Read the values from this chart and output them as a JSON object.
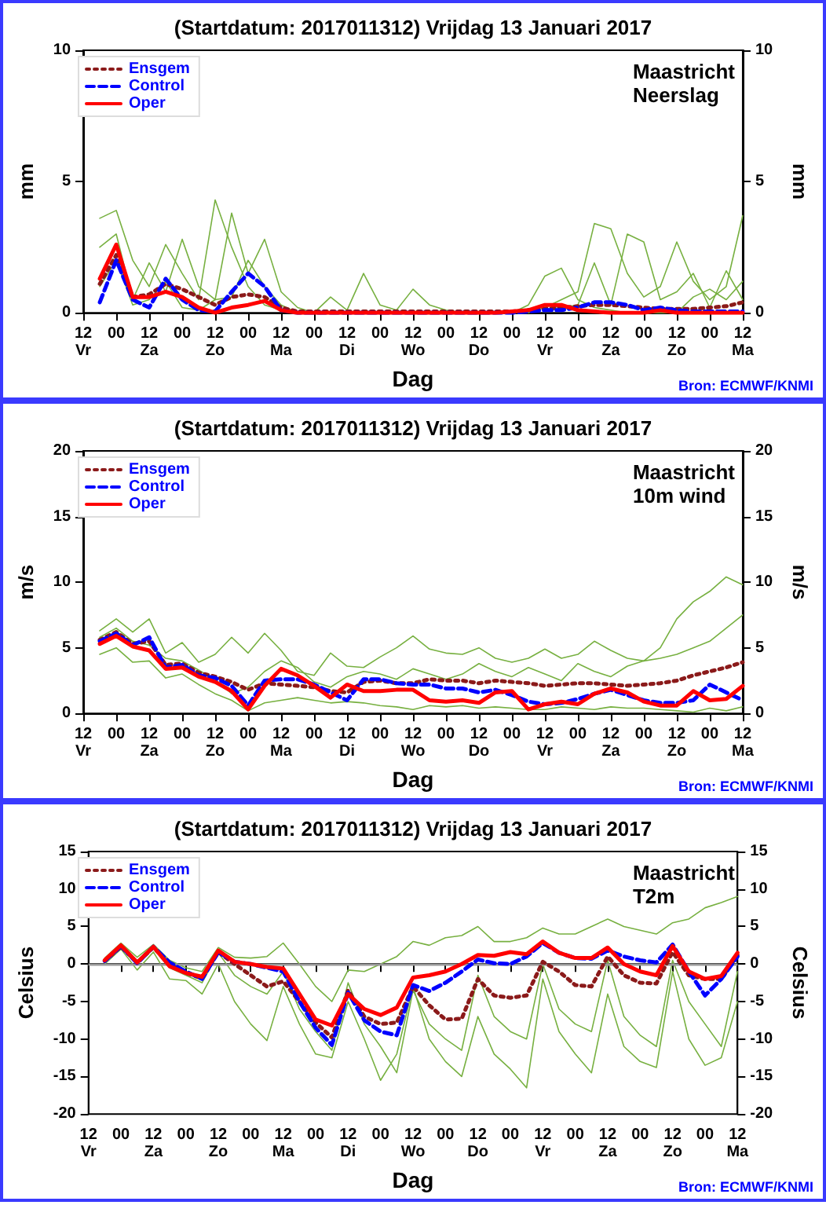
{
  "chart_data": [
    {
      "type": "line",
      "title": "(Startdatum: 2017011312) Vrijdag 13 Januari 2017",
      "subtitle": "Maastricht\nNeerslag",
      "xlabel": "Dag",
      "ylabel": "mm",
      "y2label": "mm",
      "annotations": [
        "Bron: ECMWF/KNMI"
      ],
      "legend": "top left",
      "grid": false,
      "marker": "none",
      "xlim": [
        "2017-01-13T12:00",
        "2017-01-23T12:00"
      ],
      "xticks": [
        {
          "value": "2017-01-13T12:00",
          "label": "12\nVr"
        },
        {
          "value": "2017-01-14T00:00",
          "label": "00"
        },
        {
          "value": "2017-01-14T12:00",
          "label": "12\nZa"
        },
        {
          "value": "2017-01-15T00:00",
          "label": "00"
        },
        {
          "value": "2017-01-15T12:00",
          "label": "12\nZo"
        },
        {
          "value": "2017-01-16T00:00",
          "label": "00"
        },
        {
          "value": "2017-01-16T12:00",
          "label": "12\nMa"
        },
        {
          "value": "2017-01-17T00:00",
          "label": "00"
        },
        {
          "value": "2017-01-17T12:00",
          "label": "12\nDi"
        },
        {
          "value": "2017-01-18T00:00",
          "label": "00"
        },
        {
          "value": "2017-01-18T12:00",
          "label": "12\nWo"
        },
        {
          "value": "2017-01-19T00:00",
          "label": "00"
        },
        {
          "value": "2017-01-19T12:00",
          "label": "12\nDo"
        },
        {
          "value": "2017-01-20T00:00",
          "label": "00"
        },
        {
          "value": "2017-01-20T12:00",
          "label": "12\nVr"
        },
        {
          "value": "2017-01-21T00:00",
          "label": "00"
        },
        {
          "value": "2017-01-21T12:00",
          "label": "12\nZa"
        },
        {
          "value": "2017-01-22T00:00",
          "label": "00"
        },
        {
          "value": "2017-01-22T12:00",
          "label": "12\nZo"
        },
        {
          "value": "2017-01-23T00:00",
          "label": "00"
        },
        {
          "value": "2017-01-23T12:00",
          "label": "12\nMa"
        }
      ],
      "ylim": [
        0,
        10
      ],
      "yticks": [
        0,
        5,
        10
      ],
      "y2lim": [
        0,
        10
      ],
      "y2ticks": [
        0,
        5,
        10
      ],
      "x": [
        "2017-01-13T18:00",
        "2017-01-14T00:00",
        "2017-01-14T06:00",
        "2017-01-14T12:00",
        "2017-01-14T18:00",
        "2017-01-15T00:00",
        "2017-01-15T06:00",
        "2017-01-15T12:00",
        "2017-01-15T18:00",
        "2017-01-16T00:00",
        "2017-01-16T06:00",
        "2017-01-16T12:00",
        "2017-01-16T18:00",
        "2017-01-17T00:00",
        "2017-01-17T06:00",
        "2017-01-17T12:00",
        "2017-01-17T18:00",
        "2017-01-18T00:00",
        "2017-01-18T06:00",
        "2017-01-18T12:00",
        "2017-01-18T18:00",
        "2017-01-19T00:00",
        "2017-01-19T06:00",
        "2017-01-19T12:00",
        "2017-01-19T18:00",
        "2017-01-20T00:00",
        "2017-01-20T06:00",
        "2017-01-20T12:00",
        "2017-01-20T18:00",
        "2017-01-21T00:00",
        "2017-01-21T06:00",
        "2017-01-21T12:00",
        "2017-01-21T18:00",
        "2017-01-22T00:00",
        "2017-01-22T06:00",
        "2017-01-22T12:00",
        "2017-01-22T18:00",
        "2017-01-23T00:00",
        "2017-01-23T06:00",
        "2017-01-23T12:00"
      ],
      "series": [
        {
          "color": "#77b040",
          "line_style": "solid",
          "values": [
            3.6,
            3.9,
            2.0,
            1.0,
            2.6,
            1.5,
            0.5,
            4.3,
            2.5,
            1.0,
            0.3,
            0.1,
            0,
            0,
            0,
            0,
            0,
            0,
            0,
            0,
            0,
            0,
            0,
            0,
            0,
            0,
            0.3,
            1.4,
            1.7,
            0.5,
            0.2,
            0.1,
            0,
            0,
            0,
            0,
            0.6,
            0.9,
            0.5,
            1.2
          ]
        },
        {
          "color": "#77b040",
          "line_style": "solid",
          "values": [
            2.5,
            3.0,
            0.5,
            1.9,
            0.8,
            2.8,
            1.0,
            0.5,
            3.8,
            1.5,
            2.8,
            0.8,
            0.2,
            0,
            0.6,
            0.1,
            1.5,
            0.3,
            0.1,
            0.9,
            0.3,
            0.1,
            0,
            0,
            0,
            0,
            0,
            0.2,
            0.5,
            0.8,
            3.4,
            3.2,
            1.5,
            0.6,
            1.0,
            2.7,
            1.2,
            0.5,
            1.0,
            3.7
          ]
        },
        {
          "color": "#77b040",
          "line_style": "solid",
          "values": [
            1.0,
            2.0,
            0.3,
            0.5,
            1.2,
            0.2,
            0.1,
            0.5,
            0.6,
            2.0,
            1.0,
            0.3,
            0,
            0,
            0,
            0,
            0,
            0,
            0,
            0,
            0,
            0,
            0,
            0,
            0,
            0,
            0.1,
            0.3,
            0.2,
            0.3,
            1.9,
            0.3,
            3.0,
            2.7,
            0.5,
            0.8,
            1.5,
            0.2,
            1.6,
            0.5
          ]
        },
        {
          "name": "Ensgem",
          "color": "#8b1a1a",
          "line_style": "dotted",
          "values": [
            1.1,
            2.2,
            0.6,
            0.7,
            1.1,
            0.9,
            0.6,
            0.3,
            0.6,
            0.7,
            0.6,
            0.2,
            0.05,
            0.05,
            0.05,
            0.05,
            0.05,
            0.05,
            0.05,
            0.05,
            0.05,
            0.05,
            0.05,
            0.05,
            0.05,
            0.05,
            0.1,
            0.15,
            0.2,
            0.25,
            0.3,
            0.3,
            0.25,
            0.2,
            0.15,
            0.15,
            0.15,
            0.2,
            0.25,
            0.4
          ]
        },
        {
          "name": "Control",
          "color": "#0000ff",
          "line_style": "dashed",
          "values": [
            0.4,
            2.0,
            0.5,
            0.2,
            1.3,
            0.5,
            0.1,
            0.05,
            0.8,
            1.5,
            1.0,
            0.1,
            0,
            0,
            0,
            0,
            0,
            0,
            0,
            0,
            0,
            0,
            0,
            0,
            0,
            0,
            0.05,
            0.1,
            0.1,
            0.2,
            0.4,
            0.4,
            0.3,
            0.1,
            0.2,
            0.1,
            0.05,
            0.05,
            0.05,
            0.05
          ]
        },
        {
          "name": "Oper",
          "color": "#ff0000",
          "line_style": "solid",
          "values": [
            1.3,
            2.6,
            0.6,
            0.6,
            0.8,
            0.6,
            0.2,
            0,
            0.2,
            0.3,
            0.45,
            0.1,
            0,
            0,
            0,
            0,
            0,
            0,
            0,
            0,
            0,
            0,
            0,
            0,
            0,
            0.05,
            0.1,
            0.3,
            0.3,
            0.1,
            0.05,
            0,
            0,
            0,
            0.1,
            0,
            0,
            0,
            0,
            0
          ]
        }
      ]
    },
    {
      "type": "line",
      "title": "(Startdatum: 2017011312) Vrijdag 13 Januari 2017",
      "subtitle": "Maastricht\n10m wind",
      "xlabel": "Dag",
      "ylabel": "m/s",
      "y2label": "m/s",
      "annotations": [
        "Bron: ECMWF/KNMI"
      ],
      "legend": "top left",
      "grid": false,
      "marker": "none",
      "xlim": [
        "2017-01-13T12:00",
        "2017-01-23T12:00"
      ],
      "xticks": [
        {
          "value": "2017-01-13T12:00",
          "label": "12\nVr"
        },
        {
          "value": "2017-01-14T00:00",
          "label": "00"
        },
        {
          "value": "2017-01-14T12:00",
          "label": "12\nZa"
        },
        {
          "value": "2017-01-15T00:00",
          "label": "00"
        },
        {
          "value": "2017-01-15T12:00",
          "label": "12\nZo"
        },
        {
          "value": "2017-01-16T00:00",
          "label": "00"
        },
        {
          "value": "2017-01-16T12:00",
          "label": "12\nMa"
        },
        {
          "value": "2017-01-17T00:00",
          "label": "00"
        },
        {
          "value": "2017-01-17T12:00",
          "label": "12\nDi"
        },
        {
          "value": "2017-01-18T00:00",
          "label": "00"
        },
        {
          "value": "2017-01-18T12:00",
          "label": "12\nWo"
        },
        {
          "value": "2017-01-19T00:00",
          "label": "00"
        },
        {
          "value": "2017-01-19T12:00",
          "label": "12\nDo"
        },
        {
          "value": "2017-01-20T00:00",
          "label": "00"
        },
        {
          "value": "2017-01-20T12:00",
          "label": "12\nVr"
        },
        {
          "value": "2017-01-21T00:00",
          "label": "00"
        },
        {
          "value": "2017-01-21T12:00",
          "label": "12\nZa"
        },
        {
          "value": "2017-01-22T00:00",
          "label": "00"
        },
        {
          "value": "2017-01-22T12:00",
          "label": "12\nZo"
        },
        {
          "value": "2017-01-23T00:00",
          "label": "00"
        },
        {
          "value": "2017-01-23T12:00",
          "label": "12\nMa"
        }
      ],
      "ylim": [
        0,
        20
      ],
      "yticks": [
        0,
        5,
        10,
        15,
        20
      ],
      "y2lim": [
        0,
        20
      ],
      "y2ticks": [
        0,
        5,
        10,
        15,
        20
      ],
      "x": [
        "2017-01-13T18:00",
        "2017-01-14T00:00",
        "2017-01-14T06:00",
        "2017-01-14T12:00",
        "2017-01-14T18:00",
        "2017-01-15T00:00",
        "2017-01-15T06:00",
        "2017-01-15T12:00",
        "2017-01-15T18:00",
        "2017-01-16T00:00",
        "2017-01-16T06:00",
        "2017-01-16T12:00",
        "2017-01-16T18:00",
        "2017-01-17T00:00",
        "2017-01-17T06:00",
        "2017-01-17T12:00",
        "2017-01-17T18:00",
        "2017-01-18T00:00",
        "2017-01-18T06:00",
        "2017-01-18T12:00",
        "2017-01-18T18:00",
        "2017-01-19T00:00",
        "2017-01-19T06:00",
        "2017-01-19T12:00",
        "2017-01-19T18:00",
        "2017-01-20T00:00",
        "2017-01-20T06:00",
        "2017-01-20T12:00",
        "2017-01-20T18:00",
        "2017-01-21T00:00",
        "2017-01-21T06:00",
        "2017-01-21T12:00",
        "2017-01-21T18:00",
        "2017-01-22T00:00",
        "2017-01-22T06:00",
        "2017-01-22T12:00",
        "2017-01-22T18:00",
        "2017-01-23T00:00",
        "2017-01-23T06:00",
        "2017-01-23T12:00"
      ],
      "series": [
        {
          "color": "#77b040",
          "line_style": "solid",
          "values": [
            6.3,
            7.2,
            6.2,
            7.2,
            4.6,
            5.4,
            3.9,
            4.5,
            5.8,
            4.6,
            6.1,
            4.8,
            3.2,
            2.9,
            4.6,
            3.6,
            3.5,
            4.3,
            5.0,
            5.9,
            4.9,
            4.6,
            4.5,
            5.0,
            4.2,
            3.9,
            4.2,
            4.9,
            4.2,
            4.5,
            5.5,
            4.8,
            4.2,
            4.0,
            5.0,
            7.2,
            8.5,
            9.3,
            10.4,
            9.8
          ]
        },
        {
          "color": "#77b040",
          "line_style": "solid",
          "values": [
            4.5,
            5.0,
            3.9,
            4.0,
            2.7,
            3.0,
            2.2,
            1.5,
            1.0,
            0.2,
            0.8,
            1.0,
            1.2,
            1.0,
            0.8,
            0.9,
            0.8,
            0.6,
            0.5,
            0.3,
            0.6,
            0.5,
            0.6,
            0.4,
            0.5,
            0.4,
            0.3,
            0.3,
            0.5,
            0.4,
            0.3,
            0.5,
            0.4,
            0.4,
            0.3,
            0.2,
            0.1,
            0.4,
            0.2,
            0.5
          ]
        },
        {
          "color": "#77b040",
          "line_style": "solid",
          "values": [
            5.8,
            6.5,
            5.5,
            5.2,
            4.2,
            4.0,
            3.3,
            2.6,
            1.5,
            2.0,
            3.2,
            4.0,
            3.5,
            2.4,
            2.0,
            2.8,
            3.2,
            3.0,
            2.6,
            3.4,
            3.0,
            2.6,
            3.0,
            3.8,
            3.2,
            2.8,
            3.5,
            3.0,
            2.5,
            3.8,
            3.2,
            2.8,
            3.6,
            4.0,
            4.2,
            4.5,
            5.0,
            5.5,
            6.5,
            7.5
          ]
        },
        {
          "name": "Ensgem",
          "color": "#8b1a1a",
          "line_style": "dotted",
          "values": [
            5.6,
            6.2,
            5.3,
            5.5,
            3.7,
            3.8,
            3.1,
            2.8,
            2.4,
            1.8,
            2.3,
            2.2,
            2.1,
            2.0,
            1.7,
            1.6,
            2.4,
            2.5,
            2.3,
            2.3,
            2.6,
            2.5,
            2.5,
            2.3,
            2.5,
            2.4,
            2.3,
            2.1,
            2.2,
            2.3,
            2.3,
            2.2,
            2.1,
            2.2,
            2.3,
            2.5,
            2.9,
            3.2,
            3.5,
            3.9
          ]
        },
        {
          "name": "Control",
          "color": "#0000ff",
          "line_style": "dashed",
          "values": [
            5.5,
            6.1,
            5.2,
            5.8,
            3.5,
            3.7,
            2.9,
            2.7,
            2.1,
            0.6,
            2.5,
            2.6,
            2.6,
            2.2,
            1.6,
            1.0,
            2.6,
            2.6,
            2.3,
            2.2,
            2.2,
            1.9,
            1.9,
            1.6,
            1.8,
            1.4,
            0.9,
            0.7,
            0.8,
            1.1,
            1.5,
            1.8,
            1.4,
            1.0,
            0.8,
            0.8,
            1.0,
            2.2,
            1.6,
            1.0
          ]
        },
        {
          "name": "Oper",
          "color": "#ff0000",
          "line_style": "solid",
          "values": [
            5.3,
            5.9,
            5.1,
            4.8,
            3.4,
            3.5,
            2.8,
            2.4,
            1.7,
            0.3,
            2.1,
            3.4,
            2.9,
            2.1,
            1.2,
            2.2,
            1.7,
            1.7,
            1.8,
            1.8,
            1.0,
            0.9,
            1.0,
            0.8,
            1.6,
            1.7,
            0.3,
            0.7,
            0.9,
            0.7,
            1.5,
            1.9,
            1.6,
            0.9,
            0.6,
            0.6,
            1.7,
            1.0,
            1.1,
            2.1
          ]
        }
      ]
    },
    {
      "type": "line",
      "title": "(Startdatum: 2017011312) Vrijdag 13 Januari 2017",
      "subtitle": "Maastricht\nT2m",
      "xlabel": "Dag",
      "ylabel": "Celsius",
      "y2label": "Celsius",
      "annotations": [
        "Bron: ECMWF/KNMI"
      ],
      "legend": "top left",
      "grid": false,
      "marker": "none",
      "xlim": [
        "2017-01-13T12:00",
        "2017-01-23T12:00"
      ],
      "xticks": [
        {
          "value": "2017-01-13T12:00",
          "label": "12\nVr"
        },
        {
          "value": "2017-01-14T00:00",
          "label": "00"
        },
        {
          "value": "2017-01-14T12:00",
          "label": "12\nZa"
        },
        {
          "value": "2017-01-15T00:00",
          "label": "00"
        },
        {
          "value": "2017-01-15T12:00",
          "label": "12\nZo"
        },
        {
          "value": "2017-01-16T00:00",
          "label": "00"
        },
        {
          "value": "2017-01-16T12:00",
          "label": "12\nMa"
        },
        {
          "value": "2017-01-17T00:00",
          "label": "00"
        },
        {
          "value": "2017-01-17T12:00",
          "label": "12\nDi"
        },
        {
          "value": "2017-01-18T00:00",
          "label": "00"
        },
        {
          "value": "2017-01-18T12:00",
          "label": "12\nWo"
        },
        {
          "value": "2017-01-19T00:00",
          "label": "00"
        },
        {
          "value": "2017-01-19T12:00",
          "label": "12\nDo"
        },
        {
          "value": "2017-01-20T00:00",
          "label": "00"
        },
        {
          "value": "2017-01-20T12:00",
          "label": "12\nVr"
        },
        {
          "value": "2017-01-21T00:00",
          "label": "00"
        },
        {
          "value": "2017-01-21T12:00",
          "label": "12\nZa"
        },
        {
          "value": "2017-01-22T00:00",
          "label": "00"
        },
        {
          "value": "2017-01-22T12:00",
          "label": "12\nZo"
        },
        {
          "value": "2017-01-23T00:00",
          "label": "00"
        },
        {
          "value": "2017-01-23T12:00",
          "label": "12\nMa"
        }
      ],
      "ylim": [
        -20,
        15
      ],
      "yticks": [
        -20,
        -15,
        -10,
        -5,
        0,
        5,
        10,
        15
      ],
      "y2lim": [
        -20,
        15
      ],
      "y2ticks": [
        -20,
        -15,
        -10,
        -5,
        0,
        5,
        10,
        15
      ],
      "ref_lines": [
        {
          "axis": "y",
          "value": 0,
          "color": "#999999"
        }
      ],
      "x": [
        "2017-01-13T18:00",
        "2017-01-14T00:00",
        "2017-01-14T06:00",
        "2017-01-14T12:00",
        "2017-01-14T18:00",
        "2017-01-15T00:00",
        "2017-01-15T06:00",
        "2017-01-15T12:00",
        "2017-01-15T18:00",
        "2017-01-16T00:00",
        "2017-01-16T06:00",
        "2017-01-16T12:00",
        "2017-01-16T18:00",
        "2017-01-17T00:00",
        "2017-01-17T06:00",
        "2017-01-17T12:00",
        "2017-01-17T18:00",
        "2017-01-18T00:00",
        "2017-01-18T06:00",
        "2017-01-18T12:00",
        "2017-01-18T18:00",
        "2017-01-19T00:00",
        "2017-01-19T06:00",
        "2017-01-19T12:00",
        "2017-01-19T18:00",
        "2017-01-20T00:00",
        "2017-01-20T06:00",
        "2017-01-20T12:00",
        "2017-01-20T18:00",
        "2017-01-21T00:00",
        "2017-01-21T06:00",
        "2017-01-21T12:00",
        "2017-01-21T18:00",
        "2017-01-22T00:00",
        "2017-01-22T06:00",
        "2017-01-22T12:00",
        "2017-01-22T18:00",
        "2017-01-23T00:00",
        "2017-01-23T06:00",
        "2017-01-23T12:00"
      ],
      "series": [
        {
          "color": "#77b040",
          "line_style": "solid",
          "values": [
            0.8,
            2.8,
            0.9,
            2.6,
            0.5,
            -0.5,
            -1.0,
            2.2,
            0.9,
            0.8,
            1.0,
            2.8,
            0,
            -3.0,
            -5.0,
            -0.8,
            -1.0,
            0,
            1.0,
            3.0,
            2.5,
            3.5,
            3.8,
            5.0,
            3.0,
            3.0,
            3.5,
            4.8,
            4.0,
            4.0,
            5.0,
            6.0,
            5.0,
            4.5,
            4.0,
            5.5,
            6.0,
            7.5,
            8.2,
            9.0
          ]
        },
        {
          "color": "#77b040",
          "line_style": "solid",
          "values": [
            0,
            2.0,
            -0.8,
            1.6,
            -2.0,
            -2.2,
            -4.0,
            0,
            -5.0,
            -8.0,
            -10.2,
            -3.0,
            -8.0,
            -12.0,
            -12.5,
            -5.0,
            -10.0,
            -15.5,
            -12.0,
            -3.0,
            -10.0,
            -13.0,
            -15.0,
            -7.0,
            -12.0,
            -14.0,
            -16.5,
            -2.0,
            -9.0,
            -12.0,
            -14.5,
            -4.0,
            -11.0,
            -13.0,
            -13.8,
            -1.0,
            -10.0,
            -13.5,
            -12.5,
            -5.0
          ]
        },
        {
          "color": "#77b040",
          "line_style": "solid",
          "values": [
            0.5,
            2.4,
            0.3,
            2.4,
            -0.5,
            -1.5,
            -2.5,
            1.5,
            -1.5,
            -3.0,
            -4.0,
            -1.0,
            -6.0,
            -9.0,
            -11.5,
            -2.5,
            -8.0,
            -11.0,
            -14.5,
            -3.5,
            -8.0,
            -10.0,
            -11.5,
            -1.5,
            -7.0,
            -9.0,
            -10.0,
            0,
            -6.0,
            -8.0,
            -9.0,
            0.5,
            -7.0,
            -9.5,
            -11.0,
            0.5,
            -5.0,
            -8.0,
            -11.0,
            -1.0
          ]
        },
        {
          "name": "Ensgem",
          "color": "#8b1a1a",
          "line_style": "dotted",
          "values": [
            0.4,
            2.3,
            0.2,
            2.2,
            0,
            -1.2,
            -1.9,
            1.6,
            0,
            -1.5,
            -3.0,
            -2.3,
            -5.0,
            -7.8,
            -9.8,
            -3.5,
            -7.0,
            -8.0,
            -7.8,
            -3.0,
            -5.5,
            -7.4,
            -7.3,
            -2.0,
            -4.2,
            -4.5,
            -4.2,
            0.3,
            -1.0,
            -2.8,
            -3.0,
            1.0,
            -1.5,
            -2.5,
            -2.6,
            1.6,
            -1.5,
            -2.0,
            -2.0,
            1.2
          ]
        },
        {
          "name": "Control",
          "color": "#0000ff",
          "line_style": "dashed",
          "values": [
            0.4,
            2.4,
            0.1,
            2.3,
            0.2,
            -1.0,
            -2.0,
            1.6,
            0.3,
            0,
            -0.5,
            -1.0,
            -5.0,
            -8.5,
            -10.8,
            -3.8,
            -7.5,
            -9.0,
            -9.5,
            -2.8,
            -3.6,
            -2.5,
            -1.0,
            0.6,
            0.1,
            0,
            1.0,
            2.8,
            1.5,
            0.8,
            0.7,
            1.8,
            1.0,
            0.5,
            0.2,
            2.6,
            -1.0,
            -4.2,
            -2.0,
            1.0
          ]
        },
        {
          "name": "Oper",
          "color": "#ff0000",
          "line_style": "solid",
          "values": [
            0.5,
            2.5,
            0.2,
            2.3,
            -0.3,
            -1.2,
            -1.7,
            1.8,
            0.3,
            0,
            -0.4,
            -0.6,
            -4.0,
            -7.4,
            -8.2,
            -4.0,
            -6.0,
            -6.8,
            -5.8,
            -1.8,
            -1.5,
            -1.0,
            0,
            1.2,
            1.1,
            1.6,
            1.3,
            3.0,
            1.5,
            0.8,
            0.8,
            2.2,
            0,
            -1.0,
            -1.5,
            2.4,
            -1.0,
            -2.0,
            -1.6,
            1.5
          ]
        }
      ]
    }
  ]
}
